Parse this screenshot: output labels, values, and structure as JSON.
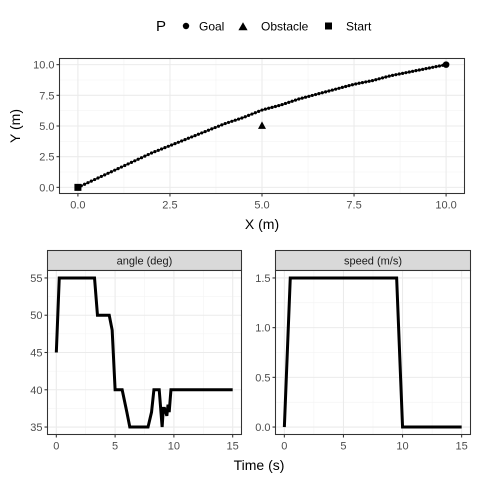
{
  "chart_data": [
    {
      "type": "scatter",
      "id": "path",
      "xlabel": "X (m)",
      "ylabel": "Y (m)",
      "xlim": [
        -0.5,
        10.5
      ],
      "ylim": [
        -0.5,
        10.5
      ],
      "x_ticks": [
        0.0,
        2.5,
        5.0,
        7.5,
        10.0
      ],
      "x_tick_labels": [
        "0.0",
        "2.5",
        "5.0",
        "7.5",
        "10.0"
      ],
      "y_ticks": [
        0.0,
        2.5,
        5.0,
        7.5,
        10.0
      ],
      "y_tick_labels": [
        "0.0",
        "2.5",
        "5.0",
        "7.5",
        "10.0"
      ],
      "grid": true,
      "legend": {
        "title": "P",
        "position": "top",
        "entries": [
          {
            "label": "Goal",
            "shape": "circle"
          },
          {
            "label": "Obstacle",
            "shape": "triangle"
          },
          {
            "label": "Start",
            "shape": "square"
          }
        ]
      },
      "points": [
        {
          "P": "Start",
          "x": 0.0,
          "y": 0.0
        },
        {
          "P": "Obstacle",
          "x": 5.0,
          "y": 5.0
        },
        {
          "P": "Goal",
          "x": 10.0,
          "y": 10.0
        }
      ],
      "trajectory": {
        "x": [
          0.0,
          0.5,
          1.0,
          1.5,
          2.0,
          2.5,
          3.0,
          3.5,
          4.0,
          4.5,
          5.0,
          5.5,
          6.0,
          6.5,
          7.0,
          7.5,
          8.0,
          8.5,
          9.0,
          9.5,
          10.0
        ],
        "y": [
          0.0,
          0.7,
          1.4,
          2.1,
          2.8,
          3.4,
          4.0,
          4.6,
          5.2,
          5.7,
          6.3,
          6.7,
          7.2,
          7.6,
          8.0,
          8.4,
          8.7,
          9.1,
          9.4,
          9.7,
          10.0
        ]
      }
    },
    {
      "type": "line",
      "id": "angle",
      "strip": "angle (deg)",
      "xlim": [
        -0.75,
        15.75
      ],
      "ylim": [
        34.0,
        56.0
      ],
      "x_ticks": [
        0,
        5,
        10,
        15
      ],
      "x_tick_labels": [
        "0",
        "5",
        "10",
        "15"
      ],
      "y_ticks": [
        35,
        40,
        45,
        50,
        55
      ],
      "y_tick_labels": [
        "35",
        "40",
        "45",
        "50",
        "55"
      ],
      "grid": true,
      "x": [
        0.0,
        0.25,
        3.25,
        3.5,
        4.5,
        4.75,
        5.0,
        5.25,
        5.6,
        6.0,
        6.25,
        7.0,
        7.8,
        8.1,
        8.3,
        8.75,
        9.0,
        9.1,
        9.2,
        9.4,
        9.5,
        9.6,
        9.75,
        10.0,
        15.0
      ],
      "y": [
        45.0,
        55.0,
        55.0,
        50.0,
        50.0,
        48.0,
        40.0,
        40.0,
        40.0,
        37.0,
        35.0,
        35.0,
        35.0,
        37.0,
        40.0,
        40.0,
        35.0,
        37.5,
        37.5,
        36.5,
        38.0,
        37.0,
        40.0,
        40.0,
        40.0
      ]
    },
    {
      "type": "line",
      "id": "speed",
      "strip": "speed (m/s)",
      "xlim": [
        -0.75,
        15.75
      ],
      "ylim": [
        -0.075,
        1.575
      ],
      "x_ticks": [
        0,
        5,
        10,
        15
      ],
      "x_tick_labels": [
        "0",
        "5",
        "10",
        "15"
      ],
      "y_ticks": [
        0.0,
        0.5,
        1.0,
        1.5
      ],
      "y_tick_labels": [
        "0.0",
        "0.5",
        "1.0",
        "1.5"
      ],
      "grid": true,
      "x": [
        0.0,
        0.5,
        9.5,
        10.0,
        15.0
      ],
      "y": [
        0.0,
        1.5,
        1.5,
        0.0,
        0.0
      ]
    }
  ],
  "shared_xlabel": "Time (s)"
}
